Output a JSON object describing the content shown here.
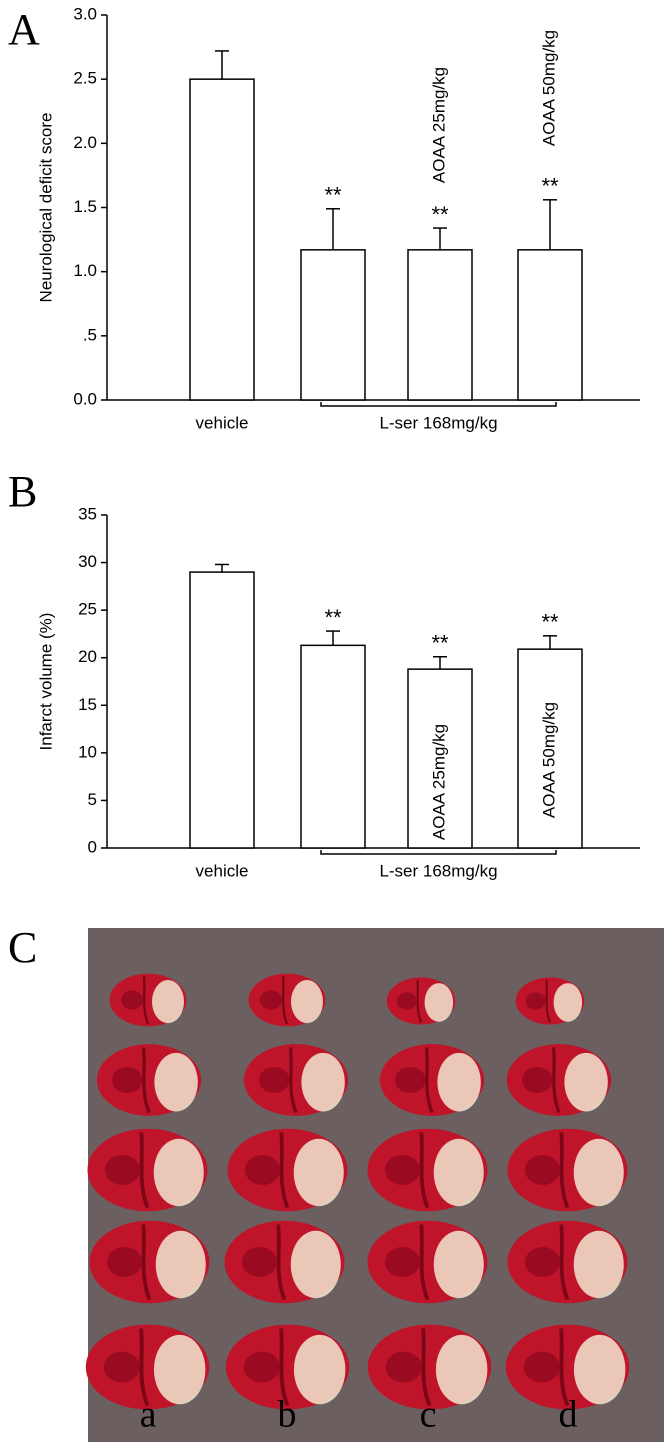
{
  "chart_data": [
    {
      "type": "bar",
      "panel_label": "A",
      "ylabel": "Neurological deficit score",
      "categories": [
        "vehicle",
        null,
        null,
        null
      ],
      "group_label": "L-ser 168mg/kg",
      "values": [
        2.5,
        1.17,
        1.17,
        1.17
      ],
      "errors": [
        0.22,
        0.32,
        0.17,
        0.39
      ],
      "annotations": [
        null,
        "**",
        "**",
        "**"
      ],
      "bar_labels": [
        null,
        null,
        "AOAA 25mg/kg",
        "AOAA 50mg/kg"
      ],
      "color": "#ffffff",
      "ylim": [
        0,
        3
      ],
      "yticks": [
        {
          "value": 0,
          "label": "0.0"
        },
        {
          "value": 0.5,
          "label": ".5"
        },
        {
          "value": 1,
          "label": "1.0"
        },
        1.5,
        {
          "value": 2,
          "label": "2.0"
        },
        2.5,
        {
          "value": 3,
          "label": "3.0"
        }
      ]
    },
    {
      "type": "bar",
      "panel_label": "B",
      "ylabel": "Infarct volume (%)",
      "categories": [
        "vehicle",
        null,
        null,
        null
      ],
      "group_label": "L-ser 168mg/kg",
      "values": [
        29,
        21.3,
        18.8,
        20.9
      ],
      "errors": [
        0.8,
        1.5,
        1.3,
        1.4
      ],
      "annotations": [
        null,
        "**",
        "**",
        "**"
      ],
      "bar_labels": [
        null,
        null,
        "AOAA 25mg/kg",
        "AOAA 50mg/kg"
      ],
      "color": "#ffffff",
      "ylim": [
        0,
        35
      ],
      "yticks": [
        0,
        5,
        10,
        15,
        20,
        25,
        30,
        35
      ]
    }
  ],
  "photo_panel": {
    "panel_label": "C",
    "columns": [
      "a",
      "b",
      "c",
      "d"
    ]
  }
}
